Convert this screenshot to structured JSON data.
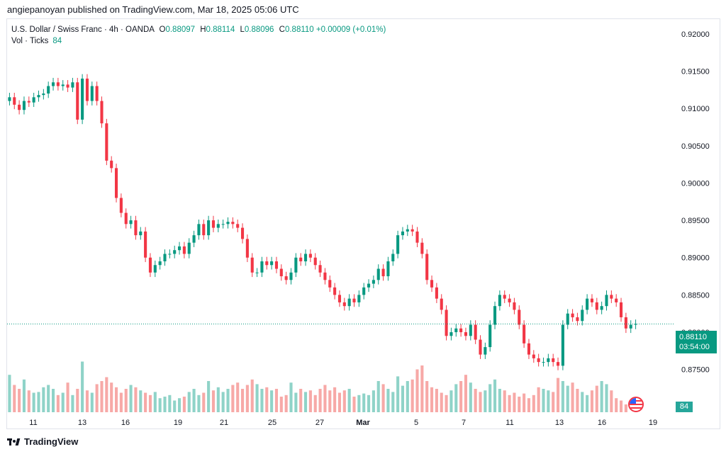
{
  "header": {
    "published": "angiepanoyan published on TradingView.com, Mar 18, 2025 05:06 UTC"
  },
  "legend": {
    "symbol": "U.S. Dollar / Swiss Franc · 4h · OANDA",
    "o_label": "O",
    "o": "0.88097",
    "h_label": "H",
    "h": "0.88114",
    "l_label": "L",
    "l": "0.88096",
    "c_label": "C",
    "c": "0.88110",
    "change": "+0.00009 (+0.01%)",
    "vol_label": "Vol · Ticks",
    "vol": "84"
  },
  "price_tag": {
    "price": "0.88110",
    "countdown": "03:54:00"
  },
  "vol_tag": "84",
  "footer": {
    "brand": "TradingView"
  },
  "colors": {
    "up": "#089981",
    "down": "#f23645",
    "vol_up": "#8fd3c8",
    "vol_down": "#f7a9a7"
  },
  "chart_data": {
    "type": "candlestick",
    "title": "U.S. Dollar / Swiss Franc · 4h · OANDA",
    "y_ticks": [
      "0.92000",
      "0.91500",
      "0.91000",
      "0.90500",
      "0.90000",
      "0.89500",
      "0.89000",
      "0.88500",
      "0.88000",
      "0.87500"
    ],
    "x_ticks": [
      "11",
      "13",
      "16",
      "19",
      "21",
      "25",
      "27",
      "Mar",
      "5",
      "7",
      "11",
      "13",
      "16",
      "19"
    ],
    "ylim": [
      0.8725,
      0.9215
    ],
    "grid": false,
    "series": [
      {
        "key": "close",
        "values": [
          0.9115,
          0.9105,
          0.9098,
          0.911,
          0.9108,
          0.9115,
          0.9118,
          0.912,
          0.913,
          0.9135,
          0.913,
          0.9132,
          0.9128,
          0.9135,
          0.9085,
          0.914,
          0.911,
          0.913,
          0.911,
          0.908,
          0.903,
          0.902,
          0.898,
          0.896,
          0.8945,
          0.895,
          0.893,
          0.8935,
          0.89,
          0.888,
          0.889,
          0.8895,
          0.8905,
          0.8905,
          0.891,
          0.8915,
          0.8905,
          0.892,
          0.893,
          0.8945,
          0.893,
          0.895,
          0.894,
          0.8945,
          0.8945,
          0.8948,
          0.8945,
          0.894,
          0.8925,
          0.89,
          0.888,
          0.888,
          0.8895,
          0.889,
          0.8895,
          0.8885,
          0.8875,
          0.887,
          0.888,
          0.89,
          0.8895,
          0.8905,
          0.89,
          0.889,
          0.888,
          0.887,
          0.886,
          0.885,
          0.884,
          0.8835,
          0.8845,
          0.884,
          0.885,
          0.886,
          0.8865,
          0.887,
          0.8885,
          0.8875,
          0.8895,
          0.8905,
          0.893,
          0.8935,
          0.8938,
          0.8935,
          0.892,
          0.8905,
          0.887,
          0.886,
          0.8845,
          0.883,
          0.8795,
          0.88,
          0.8805,
          0.88,
          0.8795,
          0.881,
          0.879,
          0.877,
          0.878,
          0.881,
          0.8835,
          0.885,
          0.8845,
          0.884,
          0.883,
          0.881,
          0.8785,
          0.877,
          0.8765,
          0.876,
          0.876,
          0.8765,
          0.876,
          0.8755,
          0.881,
          0.8825,
          0.882,
          0.8815,
          0.883,
          0.8845,
          0.884,
          0.883,
          0.8835,
          0.885,
          0.8845,
          0.884,
          0.882,
          0.8805,
          0.881,
          0.8811
        ]
      },
      {
        "key": "volume",
        "values": [
          48,
          35,
          30,
          42,
          28,
          25,
          26,
          32,
          35,
          30,
          22,
          25,
          38,
          22,
          30,
          65,
          28,
          25,
          36,
          40,
          45,
          38,
          32,
          25,
          30,
          35,
          32,
          28,
          25,
          22,
          26,
          18,
          20,
          22,
          15,
          18,
          20,
          26,
          30,
          22,
          25,
          40,
          28,
          32,
          26,
          30,
          35,
          38,
          30,
          35,
          42,
          36,
          30,
          32,
          28,
          30,
          20,
          22,
          38,
          25,
          30,
          26,
          28,
          22,
          30,
          35,
          28,
          32,
          25,
          28,
          30,
          20,
          22,
          24,
          22,
          28,
          40,
          36,
          30,
          26,
          46,
          34,
          40,
          42,
          55,
          60,
          40,
          32,
          30,
          25,
          22,
          28,
          36,
          40,
          48,
          38,
          30,
          26,
          28,
          36,
          42,
          30,
          28,
          22,
          25,
          20,
          24,
          18,
          22,
          32,
          30,
          28,
          26,
          44,
          40,
          34,
          38,
          30,
          26,
          22,
          28,
          34,
          40,
          36,
          28,
          18,
          15,
          10
        ]
      }
    ]
  }
}
